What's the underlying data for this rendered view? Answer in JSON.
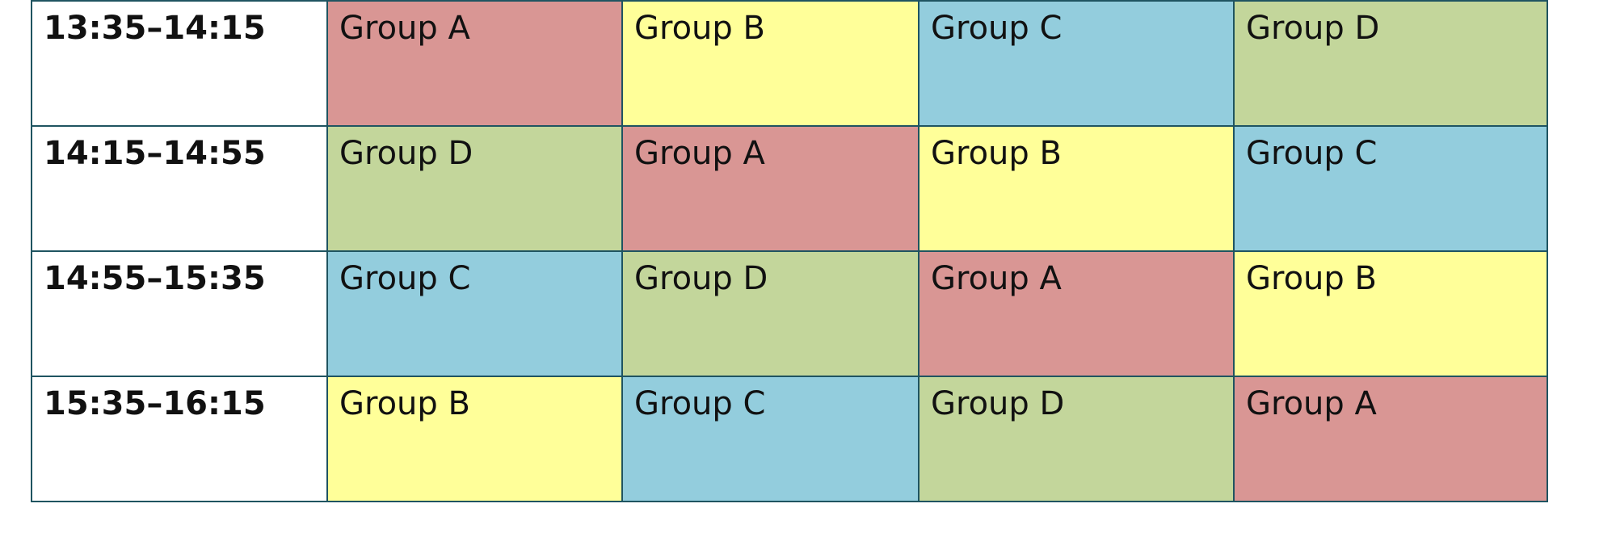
{
  "table": {
    "rows": [
      [
        "13:35–14:15",
        "Group A",
        "Group B",
        "Group C",
        "Group D"
      ],
      [
        "14:15–14:55",
        "Group D",
        "Group A",
        "Group B",
        "Group C"
      ],
      [
        "14:55–15:35",
        "Group C",
        "Group D",
        "Group A",
        "Group B"
      ],
      [
        "15:35–16:15",
        "Group B",
        "Group C",
        "Group D",
        "Group A"
      ]
    ]
  }
}
